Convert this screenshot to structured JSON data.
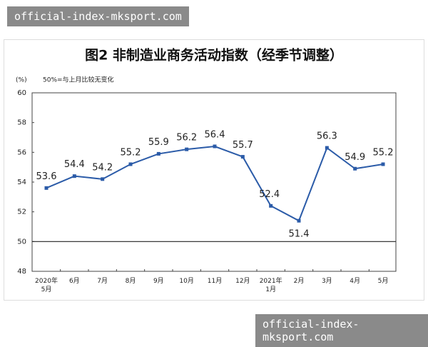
{
  "watermarks": [
    "official-index-mksport.com",
    "official-index-mksport.com"
  ],
  "chart_data": {
    "type": "line",
    "title": "图2 非制造业商务活动指数（经季节调整）",
    "unit": "(%)",
    "annotation": "50%=与上月比较无变化",
    "categories": [
      "2020年\n5月",
      "6月",
      "7月",
      "8月",
      "9月",
      "10月",
      "11月",
      "12月",
      "2021年\n1月",
      "2月",
      "3月",
      "4月",
      "5月"
    ],
    "series": [
      {
        "name": "非制造业商务活动指数",
        "color": "#2b5ba8",
        "values": [
          53.6,
          54.4,
          54.2,
          55.2,
          55.9,
          56.2,
          56.4,
          55.7,
          52.4,
          51.4,
          56.3,
          54.9,
          55.2
        ]
      }
    ],
    "ylim": [
      48,
      60
    ],
    "yticks": [
      48,
      50,
      52,
      54,
      56,
      58,
      60
    ],
    "reference_line": 50
  }
}
